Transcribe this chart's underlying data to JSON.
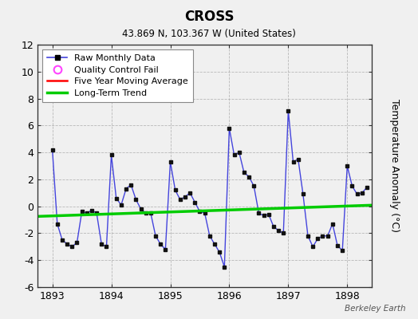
{
  "title": "CROSS",
  "subtitle": "43.869 N, 103.367 W (United States)",
  "ylabel": "Temperature Anomaly (°C)",
  "watermark": "Berkeley Earth",
  "ylim": [
    -6,
    12
  ],
  "yticks": [
    -6,
    -4,
    -2,
    0,
    2,
    4,
    6,
    8,
    10,
    12
  ],
  "xlim_start": 1892.75,
  "xlim_end": 1898.42,
  "xticks": [
    1893,
    1894,
    1895,
    1896,
    1897,
    1898
  ],
  "background_color": "#f0f0f0",
  "plot_bg_color": "#f0f0f0",
  "raw_color": "#4444dd",
  "raw_marker_color": "#111111",
  "raw_linewidth": 1.0,
  "trend_color": "#00cc00",
  "trend_linewidth": 2.5,
  "moving_avg_color": "#ff0000",
  "moving_avg_linewidth": 1.5,
  "legend_qc_color": "#ff44ff",
  "raw_data_x": [
    1893.0,
    1893.083,
    1893.167,
    1893.25,
    1893.333,
    1893.417,
    1893.5,
    1893.583,
    1893.667,
    1893.75,
    1893.833,
    1893.917,
    1894.0,
    1894.083,
    1894.167,
    1894.25,
    1894.333,
    1894.417,
    1894.5,
    1894.583,
    1894.667,
    1894.75,
    1894.833,
    1894.917,
    1895.0,
    1895.083,
    1895.167,
    1895.25,
    1895.333,
    1895.417,
    1895.5,
    1895.583,
    1895.667,
    1895.75,
    1895.833,
    1895.917,
    1896.0,
    1896.083,
    1896.167,
    1896.25,
    1896.333,
    1896.417,
    1896.5,
    1896.583,
    1896.667,
    1896.75,
    1896.833,
    1896.917,
    1897.0,
    1897.083,
    1897.167,
    1897.25,
    1897.333,
    1897.417,
    1897.5,
    1897.583,
    1897.667,
    1897.75,
    1897.833,
    1897.917,
    1898.0,
    1898.083,
    1898.167,
    1898.25,
    1898.333
  ],
  "raw_data_y": [
    4.2,
    -1.3,
    -2.5,
    -2.8,
    -3.0,
    -2.7,
    -0.4,
    -0.5,
    -0.3,
    -0.5,
    -2.8,
    -3.0,
    3.8,
    0.6,
    0.1,
    1.3,
    1.6,
    0.5,
    -0.2,
    -0.5,
    -0.5,
    -2.2,
    -2.8,
    -3.2,
    3.3,
    1.2,
    0.5,
    0.7,
    1.0,
    0.3,
    -0.4,
    -0.5,
    -2.2,
    -2.8,
    -3.4,
    -4.5,
    5.8,
    3.8,
    4.0,
    2.5,
    2.2,
    1.5,
    -0.5,
    -0.7,
    -0.6,
    -1.5,
    -1.8,
    -2.0,
    7.1,
    3.3,
    3.5,
    0.9,
    -2.2,
    -3.0,
    -2.4,
    -2.2,
    -2.2,
    -1.3,
    -2.9,
    -3.3,
    3.0,
    1.5,
    0.9,
    1.0,
    1.4
  ],
  "trend_x": [
    1892.75,
    1898.42
  ],
  "trend_y": [
    -0.75,
    0.08
  ]
}
